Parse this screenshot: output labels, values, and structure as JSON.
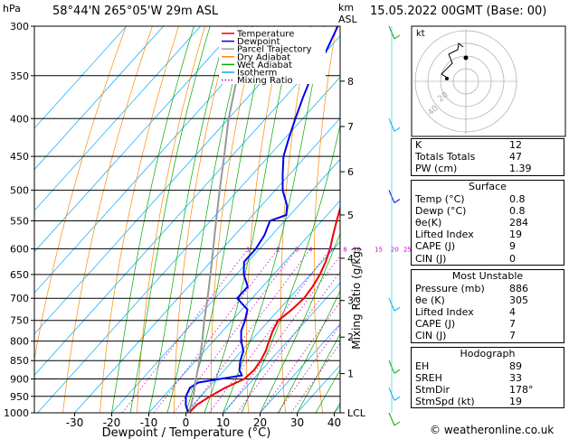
{
  "header": {
    "pressure_unit": "hPa",
    "location": "58°44'N  265°05'W  29m  ASL",
    "height_unit": "km",
    "height_unit_sub": "ASL",
    "datetime": "15.05.2022  00GMT  (Base: 00)"
  },
  "chart_data": {
    "type": "line",
    "title": "58°44'N  265°05'W  29m  ASL",
    "xlabel": "Dewpoint / Temperature (°C)",
    "ylabel": "hPa",
    "right_axis_label": "Mixing Ratio (g/kg)",
    "x_ticks": [
      -30,
      -20,
      -10,
      0,
      10,
      20,
      30,
      40
    ],
    "pressure_levels": [
      300,
      350,
      400,
      450,
      500,
      550,
      600,
      650,
      700,
      750,
      800,
      850,
      900,
      950,
      1000
    ],
    "height_ticks_km": [
      "8",
      "7",
      "6",
      "5",
      "4",
      "3",
      "2",
      "1",
      "LCL"
    ],
    "height_tick_pressures": [
      356,
      410,
      472,
      540,
      618,
      705,
      790,
      885,
      1000
    ],
    "mixing_ratio_labels": [
      "1",
      "2",
      "3",
      "4",
      "6",
      "8",
      "10",
      "15",
      "20",
      "25"
    ],
    "mixing_ratio_values": [
      1,
      2,
      3,
      4,
      6,
      8,
      10,
      15,
      20,
      25
    ],
    "legend": [
      {
        "name": "Temperature",
        "color": "#ee0000"
      },
      {
        "name": "Dewpoint",
        "color": "#0000ee"
      },
      {
        "name": "Parcel Trajectory",
        "color": "#999999"
      },
      {
        "name": "Dry Adiabat",
        "color": "#ff8800"
      },
      {
        "name": "Wet Adiabat",
        "color": "#00aa00"
      },
      {
        "name": "Isotherm",
        "color": "#00aaff"
      },
      {
        "name": "Mixing Ratio",
        "color": "#cc00cc"
      }
    ],
    "series": [
      {
        "name": "Temperature",
        "color": "#ee0000",
        "points": [
          [
            1000,
            0.8
          ],
          [
            975,
            1.0
          ],
          [
            950,
            2.5
          ],
          [
            925,
            4.5
          ],
          [
            900,
            7.5
          ],
          [
            875,
            8.0
          ],
          [
            850,
            7.5
          ],
          [
            825,
            6.5
          ],
          [
            800,
            5.0
          ],
          [
            775,
            3.5
          ],
          [
            750,
            2.5
          ],
          [
            725,
            3.5
          ],
          [
            700,
            4.0
          ],
          [
            675,
            3.5
          ],
          [
            650,
            2.5
          ],
          [
            625,
            1.0
          ],
          [
            600,
            -1.0
          ],
          [
            575,
            -3.5
          ],
          [
            550,
            -6.0
          ],
          [
            525,
            -8.5
          ],
          [
            500,
            -11.0
          ],
          [
            475,
            -14.5
          ],
          [
            450,
            -18.0
          ],
          [
            425,
            -22.0
          ],
          [
            400,
            -26.5
          ],
          [
            375,
            -30.5
          ],
          [
            350,
            -35.0
          ],
          [
            325,
            -39.0
          ],
          [
            300,
            -43.0
          ]
        ]
      },
      {
        "name": "Dewpoint",
        "color": "#0000ee",
        "points": [
          [
            1000,
            0.8
          ],
          [
            985,
            -1.0
          ],
          [
            975,
            -2.0
          ],
          [
            950,
            -4.0
          ],
          [
            925,
            -5.0
          ],
          [
            910,
            -4.0
          ],
          [
            900,
            1.0
          ],
          [
            890,
            6.0
          ],
          [
            875,
            4.0
          ],
          [
            850,
            2.0
          ],
          [
            825,
            0.5
          ],
          [
            800,
            -2.5
          ],
          [
            775,
            -5.0
          ],
          [
            750,
            -6.5
          ],
          [
            725,
            -8.5
          ],
          [
            700,
            -14.0
          ],
          [
            675,
            -14.0
          ],
          [
            650,
            -18.0
          ],
          [
            625,
            -21.0
          ],
          [
            600,
            -21.0
          ],
          [
            575,
            -22.0
          ],
          [
            550,
            -24.0
          ],
          [
            540,
            -21.0
          ],
          [
            525,
            -23.0
          ],
          [
            500,
            -28.0
          ],
          [
            475,
            -32.0
          ],
          [
            450,
            -36.0
          ],
          [
            425,
            -39.0
          ],
          [
            400,
            -42.0
          ],
          [
            375,
            -45.0
          ],
          [
            350,
            -48.0
          ],
          [
            325,
            -50.0
          ],
          [
            300,
            -53.0
          ]
        ]
      },
      {
        "name": "Parcel Trajectory",
        "color": "#999999",
        "points": [
          [
            1000,
            0.8
          ],
          [
            950,
            -2.0
          ],
          [
            900,
            -5.5
          ],
          [
            850,
            -9.0
          ],
          [
            800,
            -13.0
          ],
          [
            750,
            -17.5
          ],
          [
            700,
            -22.0
          ],
          [
            650,
            -27.0
          ],
          [
            600,
            -32.5
          ],
          [
            550,
            -38.5
          ],
          [
            500,
            -45.0
          ],
          [
            450,
            -52.0
          ],
          [
            400,
            -60.0
          ],
          [
            350,
            -68.0
          ],
          [
            300,
            -76.0
          ]
        ]
      }
    ]
  },
  "hodograph": {
    "label": "kt",
    "ring_labels": [
      "20",
      "40"
    ]
  },
  "stats": {
    "general": [
      {
        "label": "K",
        "value": "12"
      },
      {
        "label": "Totals Totals",
        "value": "47"
      },
      {
        "label": "PW (cm)",
        "value": "1.39"
      }
    ],
    "surface": {
      "title": "Surface",
      "rows": [
        {
          "label": "Temp (°C)",
          "value": "0.8"
        },
        {
          "label": "Dewp (°C)",
          "value": "0.8"
        },
        {
          "label": "θe(K)",
          "value": "284"
        },
        {
          "label": "Lifted Index",
          "value": "19"
        },
        {
          "label": "CAPE (J)",
          "value": "9"
        },
        {
          "label": "CIN (J)",
          "value": "0"
        }
      ]
    },
    "most_unstable": {
      "title": "Most Unstable",
      "rows": [
        {
          "label": "Pressure (mb)",
          "value": "886"
        },
        {
          "label": "θe (K)",
          "value": "305"
        },
        {
          "label": "Lifted Index",
          "value": "4"
        },
        {
          "label": "CAPE (J)",
          "value": "7"
        },
        {
          "label": "CIN (J)",
          "value": "7"
        }
      ]
    },
    "hodograph_box": {
      "title": "Hodograph",
      "rows": [
        {
          "label": "EH",
          "value": "89"
        },
        {
          "label": "SREH",
          "value": "33"
        },
        {
          "label": "StmDir",
          "value": "178°"
        },
        {
          "label": "StmSpd (kt)",
          "value": "19"
        }
      ]
    }
  },
  "footer": {
    "credit": "© weatheronline.co.uk"
  }
}
